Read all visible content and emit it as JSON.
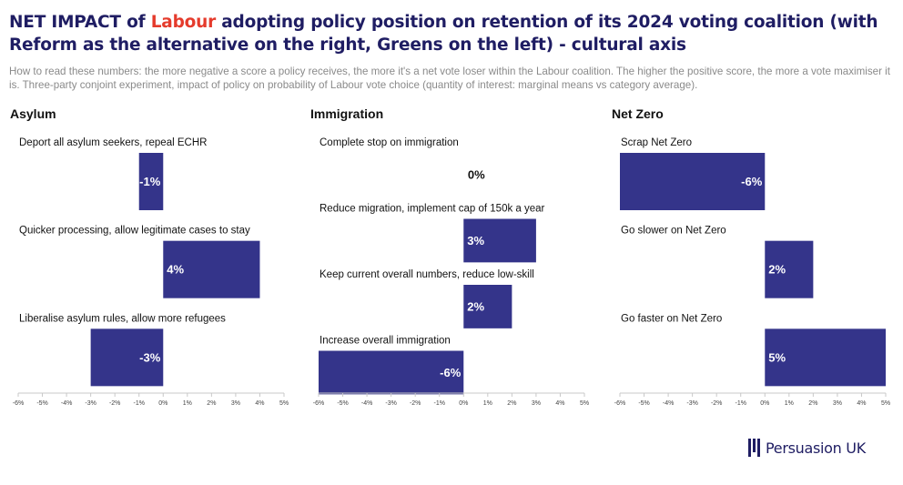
{
  "header": {
    "title_part1": "NET IMPACT of ",
    "title_highlight": "Labour",
    "title_part2": " adopting policy position on retention of its 2024 voting coalition (with Reform as the alternative on the right, Greens on the left) - cultural axis",
    "subtitle": "How to read these numbers: the more negative a score a policy receives, the more it's a net vote loser within the Labour coalition. The higher the positive score, the more a vote maximiser it is. Three-party conjoint experiment, impact of policy on probability of Labour vote choice (quantity of interest: marginal means vs category average)."
  },
  "colors": {
    "bar": "#34348a",
    "title": "#1f1d63",
    "highlight": "#e53b2c",
    "axis": "#c8c8c8"
  },
  "brand": {
    "name": "Persuasion UK",
    "icon": "persuasion-uk-logo-icon"
  },
  "chart_data": [
    {
      "type": "bar",
      "orientation": "horizontal",
      "title": "Asylum",
      "categories": [
        "Deport all asylum seekers, repeal ECHR",
        "Quicker processing, allow legitimate cases to stay",
        "Liberalise asylum rules, allow more refugees"
      ],
      "values": [
        -1,
        4,
        -3
      ],
      "labels": [
        "-1%",
        "4%",
        "-3%"
      ],
      "xlim": [
        -6,
        5
      ],
      "ticks": [
        "-6%",
        "-5%",
        "-4%",
        "-3%",
        "-2%",
        "-1%",
        "0%",
        "1%",
        "2%",
        "3%",
        "4%",
        "5%"
      ]
    },
    {
      "type": "bar",
      "orientation": "horizontal",
      "title": "Immigration",
      "categories": [
        "Complete stop on immigration",
        "Reduce migration, implement cap of 150k a year",
        "Keep current overall numbers, reduce low-skill",
        "Increase overall immigration"
      ],
      "values": [
        0,
        3,
        2,
        -6
      ],
      "labels": [
        "0%",
        "3%",
        "2%",
        "-6%"
      ],
      "xlim": [
        -6,
        5
      ],
      "ticks": [
        "-6%",
        "-5%",
        "-4%",
        "-3%",
        "-2%",
        "-1%",
        "0%",
        "1%",
        "2%",
        "3%",
        "4%",
        "5%"
      ]
    },
    {
      "type": "bar",
      "orientation": "horizontal",
      "title": "Net Zero",
      "categories": [
        "Scrap Net Zero",
        "Go slower on Net Zero",
        "Go faster on Net Zero"
      ],
      "values": [
        -6,
        2,
        5
      ],
      "labels": [
        "-6%",
        "2%",
        "5%"
      ],
      "xlim": [
        -6,
        5
      ],
      "ticks": [
        "-6%",
        "-5%",
        "-4%",
        "-3%",
        "-2%",
        "-1%",
        "0%",
        "1%",
        "2%",
        "3%",
        "4%",
        "5%"
      ]
    }
  ]
}
